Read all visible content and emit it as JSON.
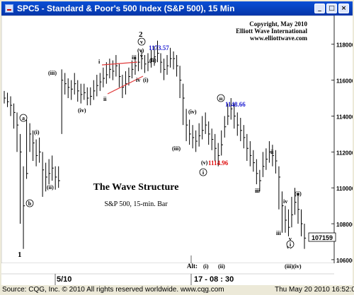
{
  "window": {
    "title": "SPC5 - Standard & Poor's 500 Index (S&P 500), 15 Min",
    "buttons": [
      "_",
      "□",
      "×"
    ]
  },
  "header_notes": [
    "Copyright, May 2010",
    "Elliott Wave International",
    "www.elliottwave.com"
  ],
  "chart_data": {
    "type": "bar",
    "title": "The Wave Structure",
    "subtitle": "S&P 500, 15-min. Bar",
    "ylim": [
      1058,
      1196
    ],
    "y_ticks": [
      "118000",
      "116000",
      "114000",
      "112000",
      "110000",
      "108000",
      "106000"
    ],
    "last_price": "107159",
    "x_labels": [
      "5/10",
      "17 - 08 : 30"
    ],
    "price_labels": [
      {
        "text": "1173.57",
        "price": 1173.57,
        "color": "#1a1ad0"
      },
      {
        "text": "1148.66",
        "price": 1148.66,
        "color": "#1a1ad0"
      },
      {
        "text": "1114.96",
        "price": 1114.96,
        "color": "#e01010"
      }
    ],
    "wave_labels": [
      "1",
      "2",
      "a",
      "b",
      "(i)",
      "(ii)",
      "(iii)",
      "(iv)",
      "(v)",
      "(i)",
      "(ii)",
      "i",
      "ii",
      "iii",
      "iv",
      "v",
      "(v)",
      "(iii)",
      "(iv)",
      "iii",
      "(i)",
      "ii",
      "i",
      "iv",
      "iii",
      "v",
      "(i)",
      "(ii)"
    ],
    "circled_labels": [
      "a",
      "b",
      "v",
      "iii",
      "i",
      "i"
    ],
    "alt_row": {
      "label": "Alt:",
      "items": [
        "(i)",
        "(ii)",
        "(iii)(iv)"
      ]
    },
    "bars": [
      [
        1150,
        1154,
        1147
      ],
      [
        1148,
        1153,
        1145
      ],
      [
        1146,
        1151,
        1140
      ],
      [
        1142,
        1147,
        1133
      ],
      [
        1135,
        1142,
        1120
      ],
      [
        1120,
        1130,
        1080
      ],
      [
        1090,
        1112,
        1066
      ],
      [
        1108,
        1138,
        1105
      ],
      [
        1130,
        1136,
        1120
      ],
      [
        1125,
        1132,
        1115
      ],
      [
        1118,
        1127,
        1112
      ],
      [
        1120,
        1128,
        1114
      ],
      [
        1110,
        1120,
        1095
      ],
      [
        1106,
        1114,
        1098
      ],
      [
        1108,
        1116,
        1102
      ],
      [
        1111,
        1118,
        1104
      ],
      [
        1106,
        1112,
        1099
      ],
      [
        1104,
        1112,
        1100
      ],
      [
        1160,
        1166,
        1130
      ],
      [
        1158,
        1164,
        1152
      ],
      [
        1156,
        1161,
        1150
      ],
      [
        1155,
        1160,
        1149
      ],
      [
        1158,
        1164,
        1152
      ],
      [
        1154,
        1160,
        1148
      ],
      [
        1152,
        1158,
        1147
      ],
      [
        1153,
        1158,
        1149
      ],
      [
        1150,
        1156,
        1146
      ],
      [
        1151,
        1156,
        1146
      ],
      [
        1154,
        1160,
        1149
      ],
      [
        1157,
        1163,
        1151
      ],
      [
        1159,
        1164,
        1154
      ],
      [
        1161,
        1167,
        1156
      ],
      [
        1163,
        1170,
        1158
      ],
      [
        1166,
        1172,
        1161
      ],
      [
        1165,
        1171,
        1160
      ],
      [
        1168,
        1174,
        1162
      ],
      [
        1162,
        1169,
        1156
      ],
      [
        1156,
        1163,
        1150
      ],
      [
        1158,
        1165,
        1152
      ],
      [
        1162,
        1167,
        1157
      ],
      [
        1166,
        1171,
        1161
      ],
      [
        1168,
        1173,
        1163
      ],
      [
        1170,
        1175,
        1165
      ],
      [
        1172,
        1177,
        1166
      ],
      [
        1169,
        1174,
        1164
      ],
      [
        1170,
        1175,
        1165
      ],
      [
        1172,
        1177,
        1167
      ],
      [
        1173,
        1179,
        1168
      ],
      [
        1175,
        1182,
        1170
      ],
      [
        1170,
        1175,
        1164
      ],
      [
        1166,
        1172,
        1160
      ],
      [
        1168,
        1174,
        1163
      ],
      [
        1172,
        1178,
        1167
      ],
      [
        1172,
        1176,
        1166
      ],
      [
        1168,
        1174,
        1162
      ],
      [
        1160,
        1168,
        1150
      ],
      [
        1150,
        1158,
        1135
      ],
      [
        1135,
        1144,
        1126
      ],
      [
        1130,
        1138,
        1124
      ],
      [
        1128,
        1135,
        1122
      ],
      [
        1126,
        1132,
        1120
      ],
      [
        1129,
        1136,
        1123
      ],
      [
        1132,
        1140,
        1127
      ],
      [
        1135,
        1142,
        1130
      ],
      [
        1130,
        1137,
        1124
      ],
      [
        1127,
        1133,
        1121
      ],
      [
        1122,
        1130,
        1115
      ],
      [
        1118,
        1125,
        1112
      ],
      [
        1124,
        1132,
        1118
      ],
      [
        1134,
        1140,
        1128
      ],
      [
        1140,
        1147,
        1135
      ],
      [
        1144,
        1150,
        1138
      ],
      [
        1140,
        1147,
        1133
      ],
      [
        1135,
        1142,
        1129
      ],
      [
        1132,
        1139,
        1126
      ],
      [
        1128,
        1135,
        1122
      ],
      [
        1122,
        1130,
        1115
      ],
      [
        1118,
        1126,
        1112
      ],
      [
        1114,
        1121,
        1109
      ],
      [
        1108,
        1116,
        1102
      ],
      [
        1104,
        1110,
        1098
      ],
      [
        1112,
        1120,
        1106
      ],
      [
        1116,
        1122,
        1110
      ],
      [
        1120,
        1126,
        1114
      ],
      [
        1118,
        1124,
        1112
      ],
      [
        1115,
        1121,
        1108
      ],
      [
        1106,
        1112,
        1088
      ],
      [
        1090,
        1098,
        1075
      ],
      [
        1082,
        1090,
        1075
      ],
      [
        1078,
        1088,
        1073
      ],
      [
        1085,
        1095,
        1078
      ],
      [
        1092,
        1100,
        1085
      ],
      [
        1088,
        1097,
        1080
      ],
      [
        1080,
        1088,
        1073
      ],
      [
        1072,
        1080,
        1066
      ]
    ]
  },
  "footer": {
    "source": "Source: CQG, Inc. © 2010 All rights reserved worldwide. www.cqg.com",
    "datetime": "Thu May 20 2010 16:52:05"
  }
}
